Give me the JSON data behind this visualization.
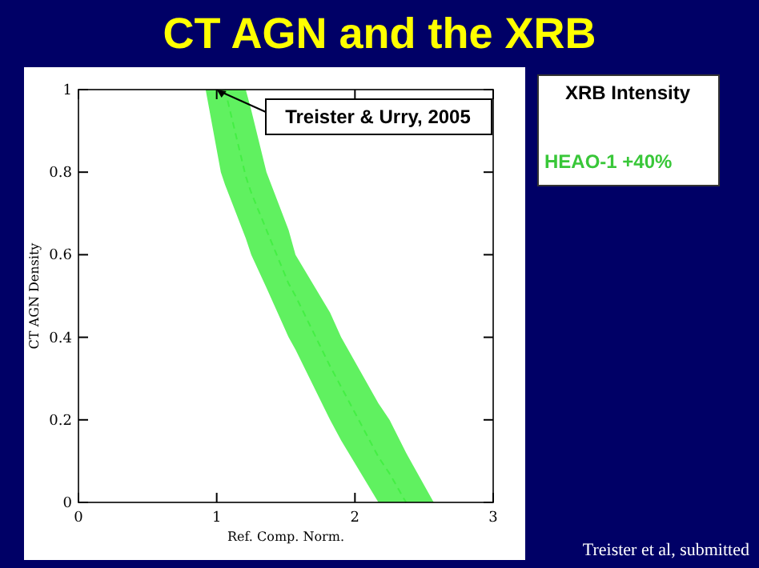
{
  "chart_data": {
    "type": "line",
    "title": "CT AGN and the XRB",
    "xlabel": "Ref. Comp. Norm.",
    "ylabel": "CT AGN Density",
    "x": [
      0.92,
      1.03,
      1.06,
      1.21,
      1.25,
      1.36,
      1.52,
      1.57,
      1.82,
      1.9,
      2.17,
      2.25,
      2.37,
      2.57
    ],
    "series": [
      {
        "name": "HEAO-1 +40%",
        "color": "#44ee44",
        "line_style": "dashed",
        "values": [
          null,
          null,
          1,
          0.79,
          0.75,
          0.66,
          0.53,
          0.5,
          0.33,
          0.28,
          0.11,
          0.07,
          0,
          null
        ],
        "lower": [
          1,
          0.8,
          0.77,
          0.64,
          0.6,
          0.52,
          0.4,
          0.37,
          0.2,
          0.15,
          0,
          0,
          0,
          0
        ],
        "upper": [
          1,
          1,
          1,
          1,
          0.95,
          0.8,
          0.66,
          0.6,
          0.46,
          0.4,
          0.24,
          0.2,
          0.12,
          0
        ]
      }
    ],
    "legend_title": "XRB Intensity",
    "legend": "top right",
    "xlim": [
      0,
      3
    ],
    "xticks": [
      0,
      1,
      2,
      3
    ],
    "ylim": [
      0,
      1
    ],
    "yticks": [
      0,
      0.2,
      0.4,
      0.6,
      0.8,
      1
    ],
    "annotations": [
      {
        "text": "Treister & Urry, 2005",
        "x": 1,
        "y": 1
      },
      "Treister et al, submitted"
    ]
  }
}
